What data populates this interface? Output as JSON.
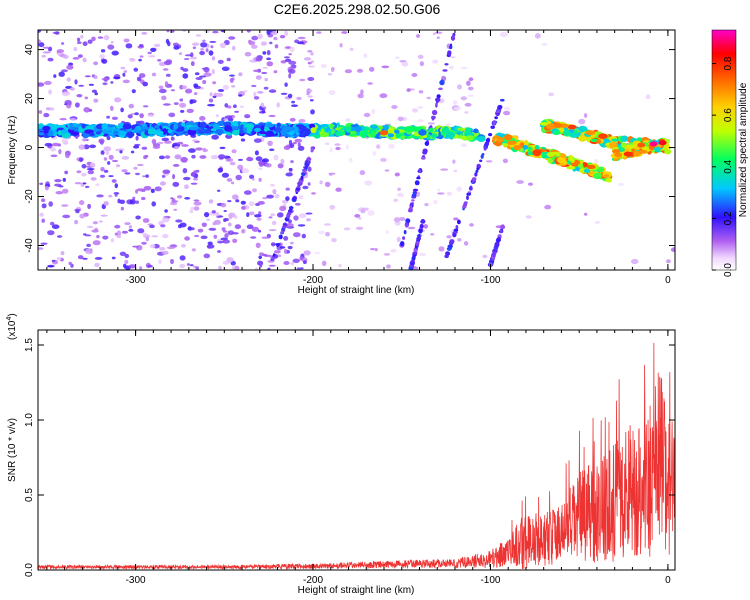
{
  "title": "C2E6.2025.298.02.50.G06",
  "chart_data": [
    {
      "type": "heatmap",
      "xlabel": "Height of straight line (km)",
      "ylabel": "Frequency (Hz)",
      "xlim": [
        -355,
        4
      ],
      "ylim": [
        -50,
        48
      ],
      "xticks": [
        -300,
        -200,
        -100,
        0
      ],
      "yticks": [
        -40,
        -20,
        0,
        20,
        40
      ],
      "colorbar": {
        "label": "Normalized spectral amplitude",
        "range": [
          0.0,
          0.93
        ],
        "ticks": [
          "0.0",
          "0.2",
          "0.4",
          "0.6",
          "0.8"
        ],
        "tick_values": [
          0.0,
          0.2,
          0.4,
          0.6,
          0.8
        ]
      },
      "ridges": [
        {
          "name": "main-ridge-left",
          "points": [
            [
              -355,
              7
            ],
            [
              -300,
              7
            ],
            [
              -250,
              8
            ],
            [
              -210,
              7
            ],
            [
              -180,
              7
            ],
            [
              -150,
              6
            ],
            [
              -120,
              6
            ],
            [
              -105,
              5
            ]
          ]
        },
        {
          "name": "upper-branch",
          "points": [
            [
              -70,
              9
            ],
            [
              -50,
              6
            ],
            [
              -30,
              2
            ],
            [
              -10,
              1
            ],
            [
              0,
              0
            ]
          ]
        },
        {
          "name": "lower-branch",
          "points": [
            [
              -97,
              4
            ],
            [
              -80,
              0
            ],
            [
              -60,
              -5
            ],
            [
              -40,
              -10
            ],
            [
              -33,
              -12
            ]
          ]
        },
        {
          "name": "near-zero-tail",
          "points": [
            [
              -30,
              -3
            ],
            [
              -15,
              -1
            ],
            [
              0,
              2
            ]
          ]
        }
      ],
      "streaks": [
        {
          "name": "streak-1",
          "points": [
            [
              -225,
              -50
            ],
            [
              -200,
              0
            ]
          ]
        },
        {
          "name": "streak-2",
          "points": [
            [
              -150,
              -40
            ],
            [
              -120,
              48
            ]
          ]
        },
        {
          "name": "streak-3",
          "points": [
            [
              -145,
              -50
            ],
            [
              -138,
              -30
            ]
          ]
        },
        {
          "name": "streak-4",
          "points": [
            [
              -125,
              -45
            ],
            [
              -92,
              22
            ]
          ]
        },
        {
          "name": "streak-5",
          "points": [
            [
              -100,
              -48
            ],
            [
              -93,
              -32
            ]
          ]
        }
      ],
      "peak_amplitude": 0.93
    },
    {
      "type": "line",
      "xlabel": "Height of straight line (km)",
      "ylabel": "SNR (10 * v/v)",
      "scale_note": "(x10",
      "scale_exp": "4",
      "scale_close": ")",
      "xlim": [
        -355,
        4
      ],
      "ylim": [
        0,
        1.6
      ],
      "xticks": [
        -300,
        -200,
        -100,
        0
      ],
      "yticks": [
        0.0,
        0.5,
        1.0,
        1.5
      ],
      "ytick_labels": [
        "0.0",
        "0.5",
        "1.0",
        "1.5"
      ],
      "color": "#ee3333",
      "envelope": [
        {
          "x": -355,
          "mean": 0.02,
          "amp": 0.012
        },
        {
          "x": -300,
          "mean": 0.02,
          "amp": 0.012
        },
        {
          "x": -250,
          "mean": 0.02,
          "amp": 0.012
        },
        {
          "x": -200,
          "mean": 0.025,
          "amp": 0.018
        },
        {
          "x": -150,
          "mean": 0.04,
          "amp": 0.025
        },
        {
          "x": -120,
          "mean": 0.045,
          "amp": 0.03
        },
        {
          "x": -100,
          "mean": 0.07,
          "amp": 0.06
        },
        {
          "x": -90,
          "mean": 0.12,
          "amp": 0.1
        },
        {
          "x": -80,
          "mean": 0.2,
          "amp": 0.2
        },
        {
          "x": -70,
          "mean": 0.2,
          "amp": 0.18
        },
        {
          "x": -60,
          "mean": 0.25,
          "amp": 0.2
        },
        {
          "x": -50,
          "mean": 0.35,
          "amp": 0.3
        },
        {
          "x": -40,
          "mean": 0.4,
          "amp": 0.35
        },
        {
          "x": -30,
          "mean": 0.45,
          "amp": 0.4
        },
        {
          "x": -20,
          "mean": 0.55,
          "amp": 0.45
        },
        {
          "x": -10,
          "mean": 0.6,
          "amp": 0.55
        },
        {
          "x": -4,
          "mean": 0.8,
          "amp": 0.6
        },
        {
          "x": 0,
          "mean": 0.55,
          "amp": 0.5
        },
        {
          "x": 4,
          "mean": 0.7,
          "amp": 0.45
        }
      ],
      "samples": 2200
    }
  ]
}
